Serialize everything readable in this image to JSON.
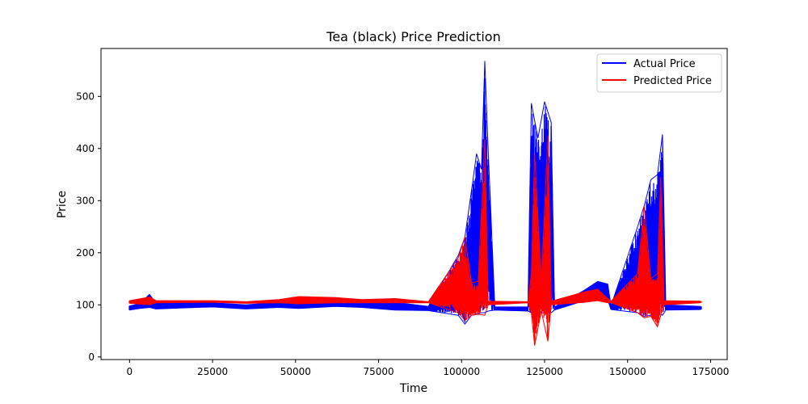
{
  "chart_data": {
    "type": "line",
    "title": "Tea (black) Price Prediction",
    "xlabel": "Time",
    "ylabel": "Price",
    "xlim": [
      -8600,
      180000
    ],
    "ylim": [
      -5,
      592
    ],
    "xticks": [
      0,
      25000,
      50000,
      75000,
      100000,
      125000,
      150000,
      175000
    ],
    "xtick_labels": [
      "0",
      "25000",
      "50000",
      "75000",
      "100000",
      "125000",
      "150000",
      "175000"
    ],
    "yticks": [
      0,
      100,
      200,
      300,
      400,
      500
    ],
    "ytick_labels": [
      "0",
      "100",
      "200",
      "300",
      "400",
      "500"
    ],
    "grid": false,
    "legend_position": "top-right",
    "series": [
      {
        "name": "Actual Price",
        "color": "#0000ff",
        "envelope": [
          {
            "x": 0,
            "low": 90,
            "high": 98
          },
          {
            "x": 3000,
            "low": 93,
            "high": 102
          },
          {
            "x": 6000,
            "low": 95,
            "high": 120
          },
          {
            "x": 8000,
            "low": 92,
            "high": 103
          },
          {
            "x": 15000,
            "low": 94,
            "high": 104
          },
          {
            "x": 25000,
            "low": 96,
            "high": 104
          },
          {
            "x": 35000,
            "low": 92,
            "high": 100
          },
          {
            "x": 45000,
            "low": 95,
            "high": 105
          },
          {
            "x": 51000,
            "low": 93,
            "high": 108
          },
          {
            "x": 62000,
            "low": 97,
            "high": 110
          },
          {
            "x": 70000,
            "low": 95,
            "high": 108
          },
          {
            "x": 80000,
            "low": 90,
            "high": 105
          },
          {
            "x": 90000,
            "low": 89,
            "high": 97
          },
          {
            "x": 99000,
            "low": 80,
            "high": 195
          },
          {
            "x": 101000,
            "low": 63,
            "high": 230
          },
          {
            "x": 103000,
            "low": 80,
            "high": 320
          },
          {
            "x": 104500,
            "low": 82,
            "high": 390
          },
          {
            "x": 106000,
            "low": 85,
            "high": 360
          },
          {
            "x": 107000,
            "low": 85,
            "high": 568
          },
          {
            "x": 108000,
            "low": 88,
            "high": 400
          },
          {
            "x": 110000,
            "low": 90,
            "high": 96
          },
          {
            "x": 120000,
            "low": 88,
            "high": 96
          },
          {
            "x": 121000,
            "low": 85,
            "high": 487
          },
          {
            "x": 123000,
            "low": 85,
            "high": 420
          },
          {
            "x": 125000,
            "low": 85,
            "high": 490
          },
          {
            "x": 127000,
            "low": 85,
            "high": 450
          },
          {
            "x": 128000,
            "low": 90,
            "high": 96
          },
          {
            "x": 137000,
            "low": 108,
            "high": 128
          },
          {
            "x": 141000,
            "low": 115,
            "high": 145
          },
          {
            "x": 144000,
            "low": 110,
            "high": 140
          },
          {
            "x": 145000,
            "low": 91,
            "high": 98
          },
          {
            "x": 153000,
            "low": 85,
            "high": 250
          },
          {
            "x": 155000,
            "low": 78,
            "high": 290
          },
          {
            "x": 157000,
            "low": 80,
            "high": 340
          },
          {
            "x": 159000,
            "low": 85,
            "high": 350
          },
          {
            "x": 160500,
            "low": 80,
            "high": 427
          },
          {
            "x": 161500,
            "low": 90,
            "high": 100
          },
          {
            "x": 172000,
            "low": 91,
            "high": 97
          }
        ]
      },
      {
        "name": "Predicted Price",
        "color": "#ff0000",
        "envelope": [
          {
            "x": 0,
            "low": 103,
            "high": 108
          },
          {
            "x": 6000,
            "low": 100,
            "high": 115
          },
          {
            "x": 8000,
            "low": 104,
            "high": 108
          },
          {
            "x": 25000,
            "low": 105,
            "high": 108
          },
          {
            "x": 35000,
            "low": 103,
            "high": 106
          },
          {
            "x": 45000,
            "low": 104,
            "high": 110
          },
          {
            "x": 51000,
            "low": 102,
            "high": 116
          },
          {
            "x": 62000,
            "low": 104,
            "high": 114
          },
          {
            "x": 70000,
            "low": 104,
            "high": 110
          },
          {
            "x": 80000,
            "low": 104,
            "high": 112
          },
          {
            "x": 90000,
            "low": 104,
            "high": 106
          },
          {
            "x": 99000,
            "low": 85,
            "high": 190
          },
          {
            "x": 101000,
            "low": 70,
            "high": 230
          },
          {
            "x": 103000,
            "low": 80,
            "high": 142
          },
          {
            "x": 105000,
            "low": 82,
            "high": 145
          },
          {
            "x": 107000,
            "low": 80,
            "high": 418
          },
          {
            "x": 108000,
            "low": 100,
            "high": 107
          },
          {
            "x": 120000,
            "low": 104,
            "high": 106
          },
          {
            "x": 121000,
            "low": 85,
            "high": 160
          },
          {
            "x": 122000,
            "low": 22,
            "high": 390
          },
          {
            "x": 124000,
            "low": 88,
            "high": 145
          },
          {
            "x": 126000,
            "low": 30,
            "high": 425
          },
          {
            "x": 127000,
            "low": 100,
            "high": 107
          },
          {
            "x": 137000,
            "low": 105,
            "high": 125
          },
          {
            "x": 141000,
            "low": 108,
            "high": 130
          },
          {
            "x": 144000,
            "low": 104,
            "high": 112
          },
          {
            "x": 145000,
            "low": 104,
            "high": 107
          },
          {
            "x": 153000,
            "low": 85,
            "high": 160
          },
          {
            "x": 155000,
            "low": 75,
            "high": 290
          },
          {
            "x": 157000,
            "low": 78,
            "high": 150
          },
          {
            "x": 159000,
            "low": 58,
            "high": 160
          },
          {
            "x": 160000,
            "low": 80,
            "high": 345
          },
          {
            "x": 161000,
            "low": 100,
            "high": 108
          },
          {
            "x": 172000,
            "low": 104,
            "high": 107
          }
        ]
      }
    ]
  }
}
